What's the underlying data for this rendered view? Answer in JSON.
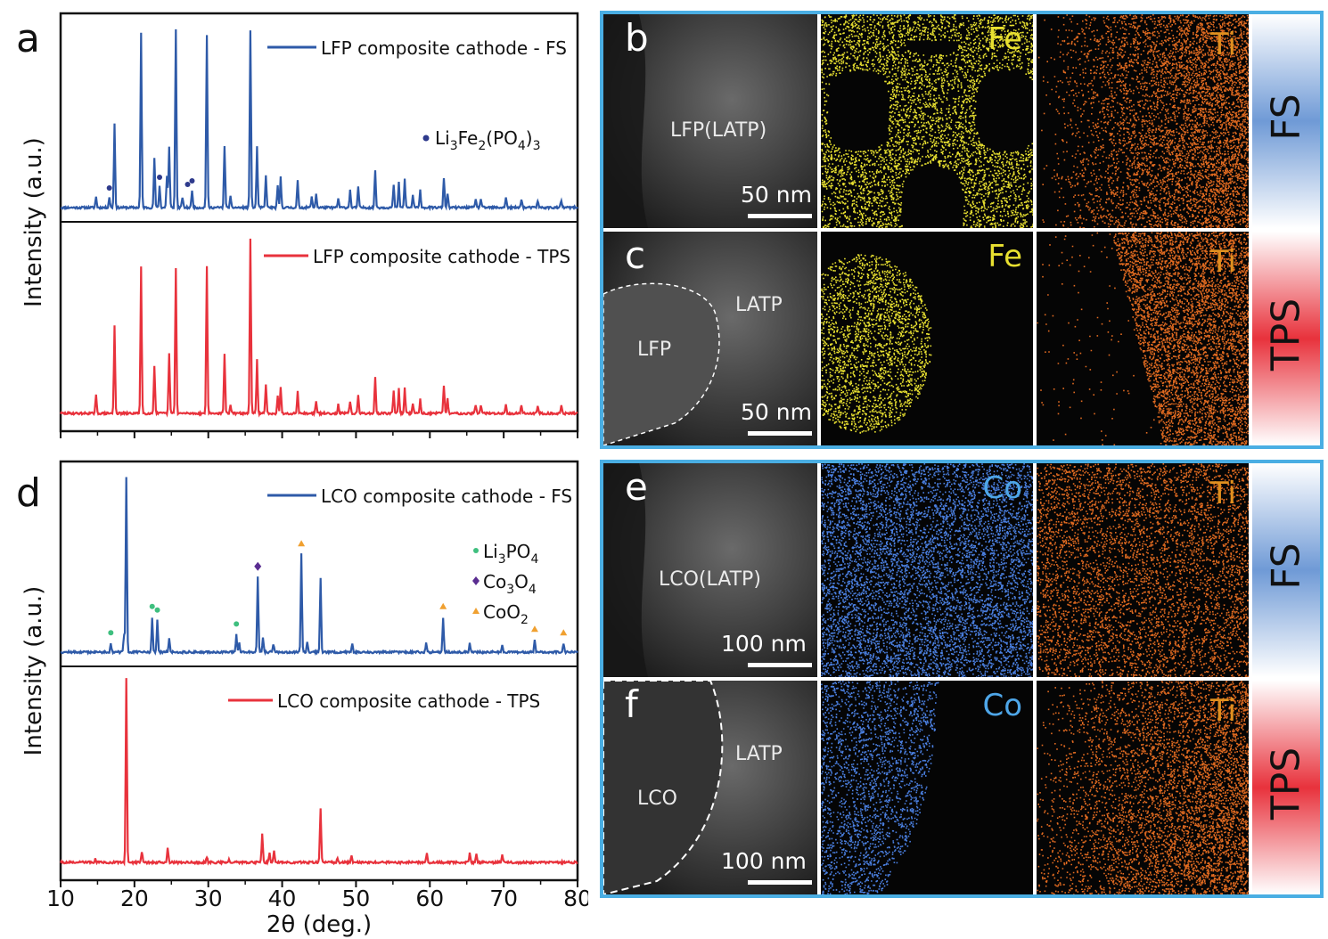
{
  "figure": {
    "panel_letters": {
      "a": "a",
      "b": "b",
      "c": "c",
      "d": "d",
      "e": "e",
      "f": "f"
    },
    "x_axis_label": "2θ (deg.)",
    "y_axis_label": "Intensity (a.u.)"
  },
  "chart_data": [
    {
      "type": "line",
      "panel": "a",
      "xlim": [
        10,
        80
      ],
      "xticks": [
        10,
        20,
        30,
        40,
        50,
        60,
        70,
        80
      ],
      "xlabel": "2θ (deg.)",
      "ylabel": "Intensity (a.u.)",
      "legend_marker_label": "Li3Fe2(PO4)3",
      "legend_marker_parts": {
        "t1": "Li",
        "s1": "3",
        "t2": "Fe",
        "s2": "2",
        "t3": "(PO",
        "s3": "4",
        "t4": ")",
        "s4": "3"
      },
      "series": [
        {
          "name": "LFP composite cathode - FS",
          "color": "#2e5aa8",
          "peaks": [
            [
              14.8,
              0.06
            ],
            [
              16.6,
              0.06
            ],
            [
              17.3,
              0.47
            ],
            [
              20.9,
              0.98
            ],
            [
              22.7,
              0.28
            ],
            [
              23.4,
              0.12
            ],
            [
              24.4,
              0.18
            ],
            [
              24.7,
              0.34
            ],
            [
              25.6,
              1.0
            ],
            [
              26.5,
              0.06
            ],
            [
              27.8,
              0.1
            ],
            [
              29.8,
              0.97
            ],
            [
              32.2,
              0.35
            ],
            [
              33.0,
              0.06
            ],
            [
              35.7,
              1.0
            ],
            [
              36.6,
              0.34
            ],
            [
              37.8,
              0.18
            ],
            [
              39.4,
              0.12
            ],
            [
              39.8,
              0.17
            ],
            [
              42.1,
              0.15
            ],
            [
              44.0,
              0.06
            ],
            [
              44.6,
              0.08
            ],
            [
              47.6,
              0.05
            ],
            [
              49.2,
              0.1
            ],
            [
              50.3,
              0.12
            ],
            [
              52.6,
              0.21
            ],
            [
              55.1,
              0.13
            ],
            [
              55.8,
              0.14
            ],
            [
              56.6,
              0.16
            ],
            [
              57.7,
              0.07
            ],
            [
              58.7,
              0.1
            ],
            [
              61.9,
              0.17
            ],
            [
              62.4,
              0.08
            ],
            [
              66.2,
              0.05
            ],
            [
              66.9,
              0.05
            ],
            [
              70.3,
              0.06
            ],
            [
              72.4,
              0.05
            ],
            [
              74.6,
              0.04
            ],
            [
              77.8,
              0.04
            ]
          ],
          "impurity_markers_x": [
            16.6,
            23.4,
            27.2,
            27.8
          ]
        },
        {
          "name": "LFP composite cathode - TPS",
          "color": "#e8323c",
          "peaks": [
            [
              14.8,
              0.1
            ],
            [
              17.3,
              0.49
            ],
            [
              20.9,
              0.82
            ],
            [
              22.7,
              0.27
            ],
            [
              24.7,
              0.34
            ],
            [
              25.6,
              0.81
            ],
            [
              29.8,
              0.82
            ],
            [
              32.2,
              0.33
            ],
            [
              33.0,
              0.05
            ],
            [
              35.7,
              0.97
            ],
            [
              36.6,
              0.3
            ],
            [
              37.8,
              0.16
            ],
            [
              39.4,
              0.1
            ],
            [
              39.8,
              0.15
            ],
            [
              42.1,
              0.12
            ],
            [
              44.6,
              0.07
            ],
            [
              47.6,
              0.05
            ],
            [
              49.2,
              0.07
            ],
            [
              50.3,
              0.1
            ],
            [
              52.6,
              0.2
            ],
            [
              55.1,
              0.13
            ],
            [
              55.8,
              0.14
            ],
            [
              56.6,
              0.14
            ],
            [
              57.7,
              0.06
            ],
            [
              58.7,
              0.08
            ],
            [
              61.9,
              0.16
            ],
            [
              62.4,
              0.08
            ],
            [
              66.2,
              0.05
            ],
            [
              66.9,
              0.05
            ],
            [
              70.3,
              0.05
            ],
            [
              72.4,
              0.05
            ],
            [
              74.6,
              0.04
            ],
            [
              77.8,
              0.04
            ]
          ]
        }
      ]
    },
    {
      "type": "line",
      "panel": "d",
      "xlim": [
        10,
        80
      ],
      "xticks": [
        10,
        20,
        30,
        40,
        50,
        60,
        70,
        80
      ],
      "xlabel": "2θ (deg.)",
      "ylabel": "Intensity (a.u.)",
      "marker_legend": [
        {
          "label": "Li3PO4",
          "parts": {
            "t1": "Li",
            "s1": "3",
            "t2": "PO",
            "s2": "4"
          },
          "symbol": "dot",
          "color": "#3fbf7f"
        },
        {
          "label": "Co3O4",
          "parts": {
            "t1": "Co",
            "s1": "3",
            "t2": "O",
            "s2": "4"
          },
          "symbol": "diamond",
          "color": "#5a2d91"
        },
        {
          "label": "CoO2",
          "parts": {
            "t1": "CoO",
            "s1": "2"
          },
          "symbol": "triangle",
          "color": "#f0a030"
        }
      ],
      "series": [
        {
          "name": "LCO composite cathode - FS",
          "color": "#2e5aa8",
          "peaks": [
            [
              16.8,
              0.05
            ],
            [
              18.6,
              0.1
            ],
            [
              18.9,
              1.0
            ],
            [
              22.4,
              0.2
            ],
            [
              23.1,
              0.18
            ],
            [
              24.7,
              0.08
            ],
            [
              33.8,
              0.1
            ],
            [
              34.2,
              0.05
            ],
            [
              36.7,
              0.43
            ],
            [
              37.4,
              0.08
            ],
            [
              38.8,
              0.05
            ],
            [
              42.6,
              0.56
            ],
            [
              43.4,
              0.06
            ],
            [
              45.2,
              0.42
            ],
            [
              49.5,
              0.05
            ],
            [
              59.5,
              0.05
            ],
            [
              61.8,
              0.2
            ],
            [
              65.4,
              0.05
            ],
            [
              69.8,
              0.04
            ],
            [
              74.2,
              0.07
            ],
            [
              78.1,
              0.05
            ]
          ],
          "markers": [
            {
              "x": 16.8,
              "kind": "Li3PO4"
            },
            {
              "x": 22.4,
              "kind": "Li3PO4"
            },
            {
              "x": 23.1,
              "kind": "Li3PO4"
            },
            {
              "x": 33.8,
              "kind": "Li3PO4"
            },
            {
              "x": 36.7,
              "kind": "Co3O4"
            },
            {
              "x": 42.6,
              "kind": "CoO2"
            },
            {
              "x": 61.8,
              "kind": "CoO2"
            },
            {
              "x": 74.2,
              "kind": "CoO2"
            },
            {
              "x": 78.1,
              "kind": "CoO2"
            }
          ]
        },
        {
          "name": "LCO composite cathode - TPS",
          "color": "#e8323c",
          "peaks": [
            [
              14.7,
              0.02
            ],
            [
              18.9,
              1.0
            ],
            [
              21.0,
              0.06
            ],
            [
              24.5,
              0.08
            ],
            [
              29.8,
              0.03
            ],
            [
              32.8,
              0.02
            ],
            [
              37.3,
              0.16
            ],
            [
              38.3,
              0.05
            ],
            [
              38.9,
              0.06
            ],
            [
              45.2,
              0.3
            ],
            [
              47.5,
              0.02
            ],
            [
              49.4,
              0.04
            ],
            [
              59.6,
              0.05
            ],
            [
              65.4,
              0.05
            ],
            [
              66.3,
              0.05
            ],
            [
              69.8,
              0.04
            ]
          ]
        }
      ]
    }
  ],
  "micrographs": {
    "b": {
      "letter": "b",
      "phase": "LFP(LATP)",
      "scale": "50 nm",
      "element1": "Fe",
      "element2": "Ti",
      "side": "FS"
    },
    "c": {
      "letter": "c",
      "phase_1": "LFP",
      "phase_2": "LATP",
      "scale": "50 nm",
      "element1": "Fe",
      "element2": "Ti",
      "side": "TPS"
    },
    "e": {
      "letter": "e",
      "phase": "LCO(LATP)",
      "scale": "100 nm",
      "element1": "Co",
      "element2": "Ti",
      "side": "FS"
    },
    "f": {
      "letter": "f",
      "phase_1": "LCO",
      "phase_2": "LATP",
      "scale": "100 nm",
      "element1": "Co",
      "element2": "Ti",
      "side": "TPS"
    }
  },
  "colors": {
    "frame": "#4aaee3",
    "fe": "#e8e030",
    "co": "#4a7fe0",
    "ti": "#e06a20",
    "fs_strip_top": "#ffffff",
    "fs_strip_mid": "#6f9ad6",
    "tps_strip_mid": "#e8323c"
  }
}
